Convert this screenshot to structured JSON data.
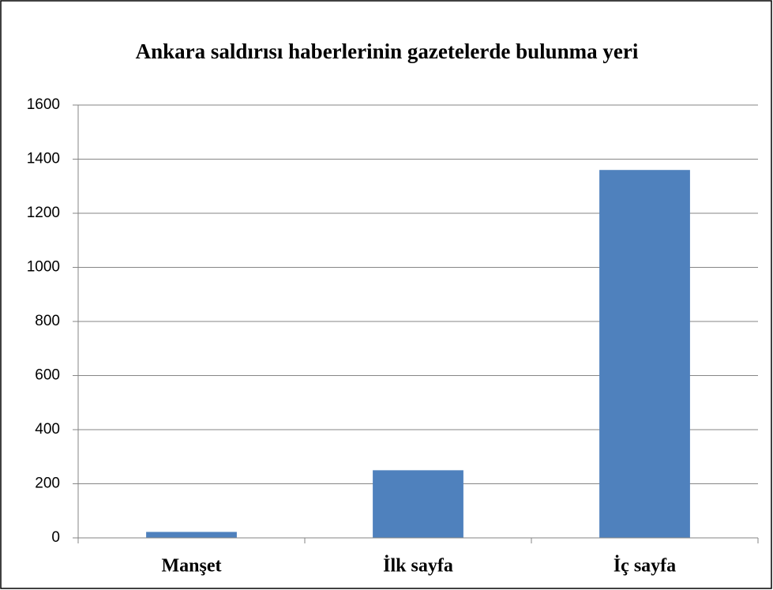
{
  "chart_data": {
    "type": "bar",
    "title": "Ankara saldırısı haberlerinin gazetelerde bulunma yeri",
    "categories": [
      "Manşet",
      "İlk sayfa",
      "İç sayfa"
    ],
    "values": [
      22,
      250,
      1360
    ],
    "color": "#4f81bd",
    "ylim": [
      0,
      1600
    ],
    "yticks": [
      0,
      200,
      400,
      600,
      800,
      1000,
      1200,
      1400,
      1600
    ],
    "grid": true
  }
}
